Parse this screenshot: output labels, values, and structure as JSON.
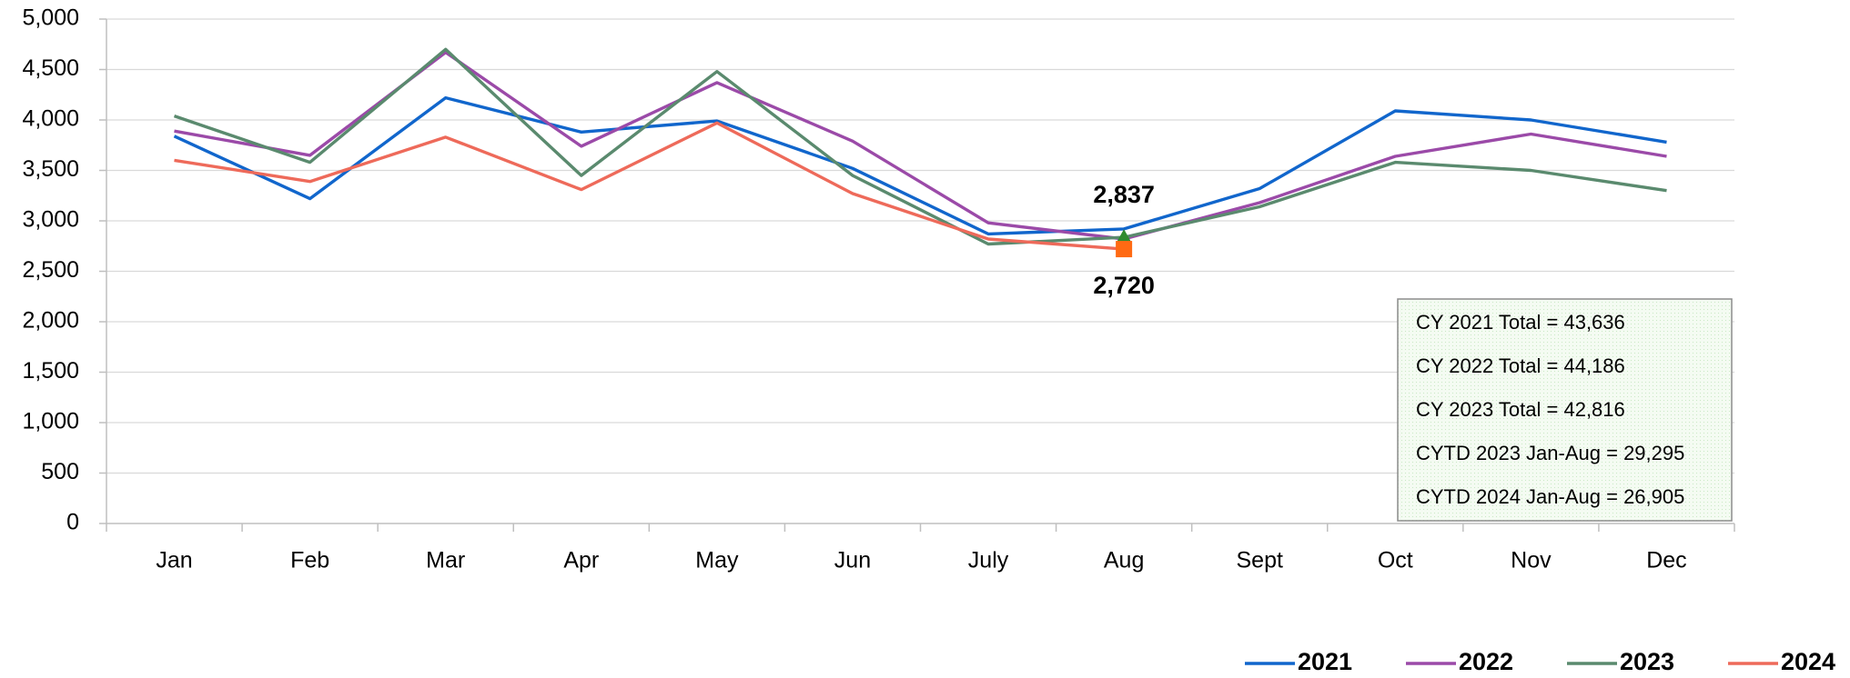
{
  "chart_data": {
    "type": "line",
    "categories": [
      "Jan",
      "Feb",
      "Mar",
      "Apr",
      "May",
      "Jun",
      "July",
      "Aug",
      "Sept",
      "Oct",
      "Nov",
      "Dec"
    ],
    "ylim": [
      0,
      5000
    ],
    "yticks": [
      0,
      500,
      {
        "value": 1000,
        "label": "1,000"
      },
      {
        "value": 1500,
        "label": "1,500"
      },
      {
        "value": 2000,
        "label": "2,000"
      },
      {
        "value": 2500,
        "label": "2,500"
      },
      {
        "value": 3000,
        "label": "3,000"
      },
      {
        "value": 3500,
        "label": "3,500"
      },
      {
        "value": 4000,
        "label": "4,000"
      },
      {
        "value": 4500,
        "label": "4,500"
      },
      {
        "value": 5000,
        "label": "5,000"
      }
    ],
    "grid": true,
    "legend": "bottom-right",
    "series": [
      {
        "name": "2021",
        "color": "#1166cc",
        "values": [
          3840,
          3220,
          4220,
          3880,
          3990,
          3520,
          2870,
          2920,
          3320,
          4090,
          4000,
          3780
        ]
      },
      {
        "name": "2022",
        "color": "#9b4aa8",
        "values": [
          3890,
          3650,
          4670,
          3740,
          4370,
          3790,
          2980,
          2820,
          3180,
          3640,
          3860,
          3640
        ]
      },
      {
        "name": "2023",
        "color": "#5a8a6e",
        "marker_color": "#2e8b2e",
        "marker": "triangle",
        "values": [
          4040,
          3580,
          4700,
          3450,
          4480,
          3450,
          2770,
          2837,
          3140,
          3580,
          3500,
          3300
        ],
        "value_labels": [
          null,
          null,
          null,
          null,
          null,
          null,
          null,
          "2,837",
          null,
          null,
          null,
          null
        ]
      },
      {
        "name": "2024",
        "color": "#ee6a5a",
        "marker_color": "#ff6a13",
        "marker": "square",
        "values": [
          3600,
          3390,
          3830,
          3310,
          3970,
          3270,
          2820,
          2720,
          null,
          null,
          null,
          null
        ],
        "value_labels": [
          null,
          null,
          null,
          null,
          null,
          null,
          null,
          "2,720",
          null,
          null,
          null,
          null
        ]
      }
    ],
    "annotations": [
      "CY 2021 Total = 43,636",
      "CY 2022 Total = 44,186",
      "CY 2023 Total = 42,816",
      "CYTD 2023 Jan-Aug = 29,295",
      "CYTD 2024 Jan-Aug = 26,905"
    ]
  }
}
